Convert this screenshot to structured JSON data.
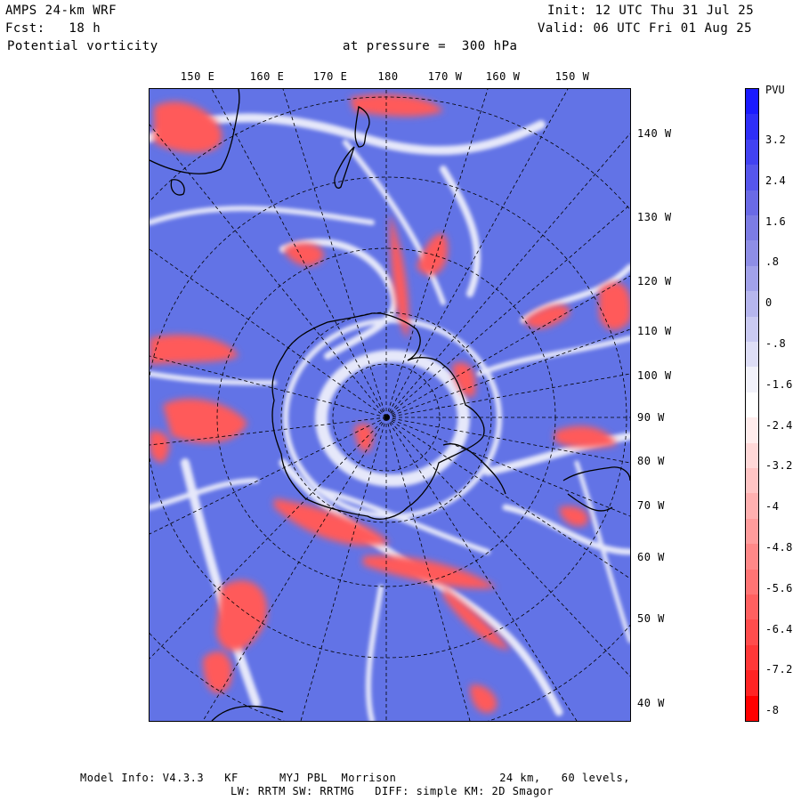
{
  "header": {
    "model": "AMPS 24-km WRF",
    "init": "Init: 12 UTC Thu 31 Jul 25",
    "forecast": "Fcst:   18 h",
    "valid": "Valid: 06 UTC Fri 01 Aug 25",
    "field": "Potential vorticity",
    "level": "at pressure =  300 hPa"
  },
  "map": {
    "top_longitudes": [
      "150 E",
      "160 E",
      "170 E",
      "180",
      "170 W",
      "160 W",
      "150 W"
    ],
    "right_longitudes": [
      "140 W",
      "130 W",
      "120 W",
      "110 W",
      "100 W",
      "90 W",
      "80 W",
      "70 W",
      "60 W",
      "50 W",
      "40 W"
    ],
    "colors": {
      "background_blue": "#6273e6",
      "positive_red": "#ff4040",
      "coastline": "#000000",
      "grid": "#000000"
    }
  },
  "colorbar": {
    "unit": "PVU",
    "labels": [
      "3.2",
      "2.4",
      "1.6",
      ".8",
      "0",
      "-.8",
      "-1.6",
      "-2.4",
      "-3.2",
      "-4",
      "-4.8",
      "-5.6",
      "-6.4",
      "-7.2",
      "-8"
    ],
    "colors": [
      "#1a1aff",
      "#2e2ef8",
      "#4242f2",
      "#5656ec",
      "#6a6ae6",
      "#7c7ce4",
      "#8e8ee6",
      "#a2a2ea",
      "#b6b6ee",
      "#cacaf2",
      "#dedef6",
      "#f2f2fa",
      "#ffffff",
      "#ffecec",
      "#ffd8d8",
      "#ffc4c4",
      "#ffb0b0",
      "#ff9c9c",
      "#ff8888",
      "#ff7474",
      "#ff6060",
      "#ff4c4c",
      "#ff3838",
      "#ff2424",
      "#ff0000"
    ]
  },
  "footer": {
    "line1": "Model Info: V4.3.3   KF      MYJ PBL  Morrison               24 km,   60 levels,",
    "line2": "LW: RRTM SW: RRTMG   DIFF: simple KM: 2D Smagor"
  }
}
